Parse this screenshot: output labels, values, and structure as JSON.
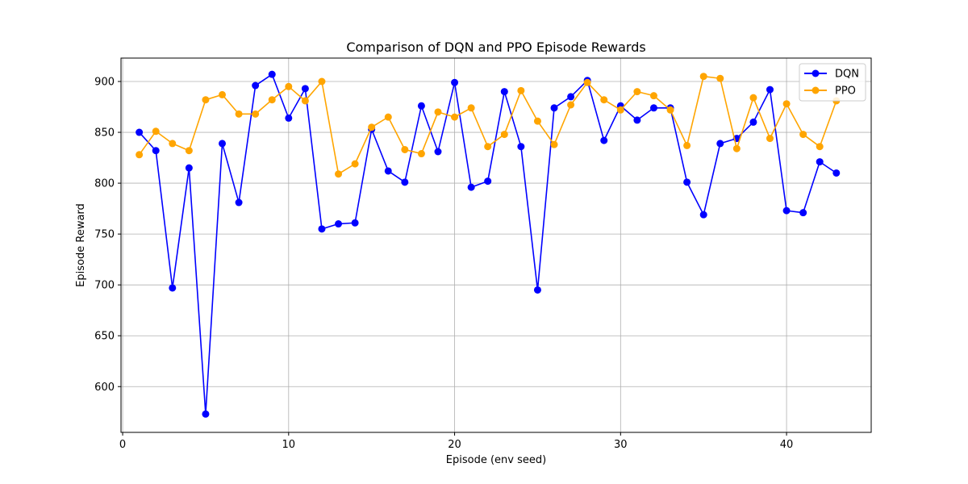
{
  "chart_data": {
    "type": "line",
    "title": "Comparison of DQN and PPO Episode Rewards",
    "xlabel": "Episode (env seed)",
    "ylabel": "Episode Reward",
    "xlim": [
      -0.1,
      45.1
    ],
    "ylim": [
      555,
      923
    ],
    "xticks": [
      0,
      10,
      20,
      30,
      40
    ],
    "yticks": [
      600,
      650,
      700,
      750,
      800,
      850,
      900
    ],
    "grid": true,
    "legend_position": "top-right",
    "x": [
      1,
      2,
      3,
      4,
      5,
      6,
      7,
      8,
      9,
      10,
      11,
      12,
      13,
      14,
      15,
      16,
      17,
      18,
      19,
      20,
      21,
      22,
      23,
      24,
      25,
      26,
      27,
      28,
      29,
      30,
      31,
      32,
      33,
      34,
      35,
      36,
      37,
      38,
      39,
      40,
      41,
      42,
      43
    ],
    "series": [
      {
        "name": "DQN",
        "color": "#0000ff",
        "values": [
          850,
          832,
          697,
          815,
          573,
          839,
          781,
          896,
          907,
          864,
          893,
          755,
          760,
          761,
          853,
          812,
          801,
          876,
          831,
          899,
          796,
          802,
          890,
          836,
          695,
          874,
          885,
          901,
          842,
          876,
          862,
          874,
          874,
          801,
          769,
          839,
          844,
          860,
          892,
          773,
          771,
          821,
          810
        ]
      },
      {
        "name": "PPO",
        "color": "#ffa500",
        "values": [
          828,
          851,
          839,
          832,
          882,
          887,
          868,
          868,
          882,
          895,
          881,
          900,
          809,
          819,
          855,
          865,
          833,
          829,
          870,
          865,
          874,
          836,
          848,
          891,
          861,
          838,
          877,
          899,
          882,
          872,
          890,
          886,
          872,
          837,
          905,
          903,
          834,
          884,
          844,
          878,
          848,
          836,
          881
        ]
      }
    ]
  }
}
